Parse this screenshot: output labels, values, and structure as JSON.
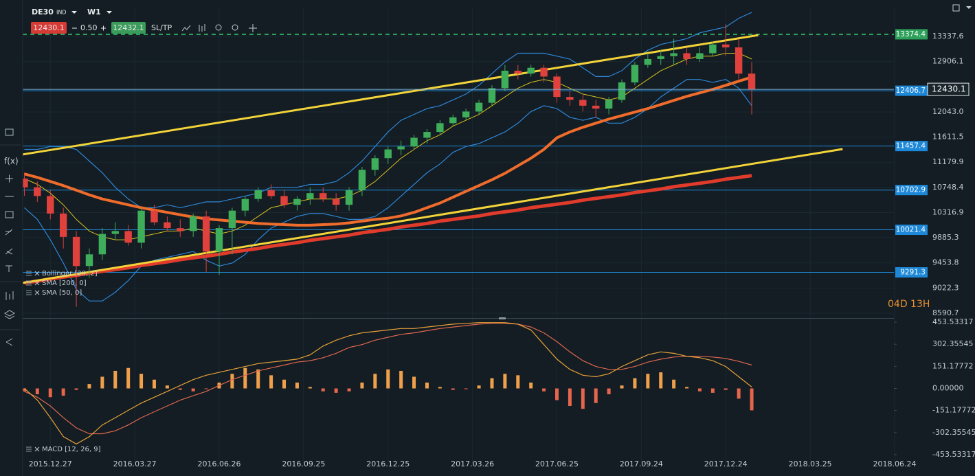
{
  "toolbar": {
    "symbol": "DE30",
    "symbol_type": "IND",
    "timeframe": "W1",
    "bid": "12430.1",
    "spread": "0.50",
    "ask": "12432.1",
    "sltp": "SL/TP"
  },
  "side_toolbar": {
    "fx": "f(x)"
  },
  "countdown": "04D 13H",
  "chart_data": [
    {
      "type": "candlestick",
      "xlim": [
        "2015.11.22",
        "2018.06.24"
      ],
      "ylim": [
        8508,
        13845
      ],
      "yticks": [
        13337.6,
        12906.1,
        {
          "value": 12043.0,
          "label": "12043.0"
        },
        11611.5,
        11179.9,
        10748.4,
        10316.9,
        9885.3,
        9453.8,
        9022.3,
        8590.7
      ],
      "grid": true,
      "up_color": "#3fae5b",
      "down_color": "#e0413d",
      "x": [
        "2015.11.29",
        "2015.12.13",
        "2015.12.27",
        "2016.01.10",
        "2016.01.24",
        "2016.02.07",
        "2016.02.21",
        "2016.03.06",
        "2016.03.20",
        "2016.04.03",
        "2016.04.17",
        "2016.05.01",
        "2016.05.15",
        "2016.05.29",
        "2016.06.12",
        "2016.06.26",
        "2016.07.10",
        "2016.07.24",
        "2016.08.07",
        "2016.08.21",
        "2016.09.04",
        "2016.09.18",
        "2016.10.02",
        "2016.10.16",
        "2016.10.30",
        "2016.11.13",
        "2016.11.27",
        "2016.12.11",
        "2016.12.25",
        "2017.01.08",
        "2017.01.22",
        "2017.02.05",
        "2017.02.19",
        "2017.03.05",
        "2017.03.19",
        "2017.04.02",
        "2017.04.16",
        "2017.04.30",
        "2017.05.14",
        "2017.05.28",
        "2017.06.11",
        "2017.06.25",
        "2017.07.09",
        "2017.07.23",
        "2017.08.06",
        "2017.08.20",
        "2017.09.03",
        "2017.09.17",
        "2017.10.01",
        "2017.10.15",
        "2017.10.29",
        "2017.11.12",
        "2017.11.26",
        "2017.12.10",
        "2017.12.24",
        "2018.01.07",
        "2018.01.21"
      ],
      "open": [
        10900,
        10750,
        10600,
        10300,
        9900,
        9400,
        9600,
        9950,
        10000,
        9800,
        10350,
        10150,
        10050,
        10000,
        10250,
        9650,
        10050,
        10350,
        10550,
        10700,
        10600,
        10450,
        10550,
        10650,
        10550,
        10450,
        10700,
        11050,
        11250,
        11400,
        11450,
        11600,
        11700,
        11850,
        11950,
        12050,
        12200,
        12450,
        12750,
        12700,
        12800,
        12650,
        12300,
        12250,
        12150,
        12100,
        12250,
        12550,
        12850,
        12950,
        13000,
        13050,
        12950,
        13050,
        13200,
        13150,
        12700
      ],
      "high": [
        11000,
        10850,
        10700,
        10400,
        10000,
        9700,
        10050,
        10150,
        10100,
        10400,
        10450,
        10250,
        10200,
        10300,
        10350,
        10100,
        10400,
        10600,
        10750,
        10800,
        10700,
        10600,
        10750,
        10750,
        10650,
        10750,
        11100,
        11300,
        11450,
        11550,
        11650,
        11750,
        11900,
        12000,
        12100,
        12250,
        12500,
        12850,
        12850,
        12850,
        12850,
        12700,
        12400,
        12350,
        12250,
        12300,
        12600,
        12900,
        13050,
        13100,
        13300,
        13150,
        13150,
        13250,
        13550,
        13300,
        12900
      ],
      "low": [
        10600,
        10500,
        10200,
        9700,
        8700,
        9200,
        9500,
        9850,
        9750,
        9700,
        10100,
        10000,
        9900,
        9900,
        9300,
        9250,
        9600,
        10250,
        10500,
        10550,
        10400,
        10350,
        10450,
        10500,
        10350,
        10350,
        10600,
        10950,
        11150,
        11300,
        11400,
        11500,
        11650,
        11800,
        11900,
        12000,
        12150,
        12400,
        12600,
        12650,
        12550,
        12200,
        12150,
        12050,
        11950,
        12000,
        12200,
        12500,
        12800,
        12850,
        12850,
        12850,
        12900,
        13000,
        13000,
        12600,
        12000
      ],
      "close": [
        10750,
        10600,
        10300,
        9900,
        9400,
        9600,
        9950,
        10000,
        9800,
        10350,
        10150,
        10050,
        10000,
        10250,
        9650,
        10050,
        10350,
        10550,
        10700,
        10600,
        10450,
        10550,
        10650,
        10550,
        10450,
        10700,
        11050,
        11250,
        11400,
        11450,
        11600,
        11700,
        11850,
        11950,
        12050,
        12200,
        12450,
        12750,
        12700,
        12800,
        12650,
        12300,
        12250,
        12150,
        12100,
        12250,
        12550,
        12850,
        12950,
        13000,
        13050,
        12950,
        13050,
        13200,
        13150,
        12700,
        12430
      ],
      "series": [
        {
          "name": "Bollinger [20, 2]",
          "color": "#2f86d8",
          "mid_color": "#d8c01f",
          "values": [
            10900,
            10800,
            10650,
            10450,
            10200,
            10000,
            9900,
            9850,
            9850,
            9900,
            9950,
            10000,
            10000,
            10050,
            10000,
            9950,
            10000,
            10100,
            10250,
            10400,
            10450,
            10500,
            10550,
            10550,
            10550,
            10600,
            10700,
            10850,
            11050,
            11250,
            11400,
            11550,
            11650,
            11800,
            11900,
            12000,
            12150,
            12300,
            12450,
            12550,
            12600,
            12550,
            12450,
            12350,
            12300,
            12250,
            12300,
            12450,
            12600,
            12750,
            12850,
            12950,
            13000,
            13000,
            13050,
            13050,
            12950
          ],
          "upper": [
            11400,
            11400,
            11450,
            11450,
            11400,
            11200,
            11000,
            10750,
            10550,
            10400,
            10400,
            10450,
            10400,
            10450,
            10500,
            10500,
            10550,
            10600,
            10650,
            10750,
            10750,
            10750,
            10800,
            10800,
            10850,
            11000,
            11200,
            11450,
            11700,
            11900,
            12000,
            12100,
            12150,
            12250,
            12350,
            12500,
            12700,
            12900,
            13050,
            13050,
            13050,
            13000,
            12950,
            12800,
            12650,
            12650,
            12750,
            12950,
            13100,
            13200,
            13250,
            13300,
            13400,
            13450,
            13500,
            13650,
            13750
          ],
          "lower": [
            10400,
            10200,
            9850,
            9450,
            9000,
            8800,
            8800,
            8950,
            9150,
            9400,
            9500,
            9550,
            9600,
            9650,
            9500,
            9400,
            9450,
            9600,
            9850,
            10050,
            10150,
            10250,
            10300,
            10300,
            10250,
            10200,
            10200,
            10250,
            10400,
            10600,
            10800,
            11000,
            11150,
            11350,
            11450,
            11500,
            11600,
            11700,
            11850,
            12050,
            12150,
            12100,
            11950,
            11900,
            11950,
            11850,
            11850,
            11950,
            12100,
            12300,
            12450,
            12600,
            12600,
            12550,
            12600,
            12450,
            12150
          ]
        },
        {
          "name": "SMA [200, 0]",
          "color": "#e03b2b",
          "values": [
            9110,
            9140,
            9180,
            9210,
            9240,
            9280,
            9310,
            9340,
            9370,
            9410,
            9440,
            9470,
            9510,
            9540,
            9570,
            9600,
            9640,
            9670,
            9700,
            9740,
            9770,
            9800,
            9840,
            9870,
            9900,
            9930,
            9970,
            10000,
            10030,
            10070,
            10100,
            10130,
            10170,
            10200,
            10230,
            10260,
            10300,
            10330,
            10360,
            10400,
            10430,
            10460,
            10490,
            10530,
            10560,
            10590,
            10620,
            10660,
            10690,
            10720,
            10760,
            10790,
            10820,
            10850,
            10890,
            10920,
            10950
          ]
        },
        {
          "name": "SMA [50, 0]",
          "color": "#ef6c2c",
          "values": [
            10980,
            10920,
            10850,
            10780,
            10700,
            10620,
            10550,
            10500,
            10450,
            10400,
            10360,
            10320,
            10280,
            10240,
            10210,
            10190,
            10170,
            10150,
            10130,
            10120,
            10110,
            10100,
            10100,
            10110,
            10120,
            10140,
            10170,
            10200,
            10220,
            10260,
            10320,
            10400,
            10480,
            10580,
            10680,
            10780,
            10880,
            10990,
            11120,
            11250,
            11400,
            11600,
            11700,
            11780,
            11850,
            11920,
            11980,
            12040,
            12100,
            12170,
            12240,
            12310,
            12370,
            12430,
            12500,
            12570,
            12640
          ]
        }
      ],
      "trendlines": [
        {
          "color": "#f3d33a",
          "x": [
            "2015.11.22",
            "2018.01.28"
          ],
          "y": [
            11300,
            13360
          ]
        },
        {
          "color": "#f3d33a",
          "x": [
            "2015.11.22",
            "2018.04.29"
          ],
          "y": [
            9097,
            11406
          ]
        }
      ],
      "target": {
        "value": 13374.4,
        "color": "#2da05a"
      },
      "levels": [
        {
          "value": 12406.7,
          "color": "#1e88d8"
        },
        {
          "value": 11457.4,
          "color": "#1e88d8"
        },
        {
          "value": 10702.9,
          "color": "#1e88d8"
        },
        {
          "value": 10021.4,
          "color": "#1e88d8"
        },
        {
          "value": 9291.3,
          "color": "#1e88d8"
        }
      ],
      "current_price": 12430.1
    },
    {
      "type": "macd",
      "name": "MACD [12, 26, 9]",
      "xlim": [
        "2015.11.22",
        "2018.06.24"
      ],
      "xticks": [
        "2015.12.27",
        "2016.03.27",
        "2016.06.26",
        "2016.09.25",
        "2016.12.25",
        "2017.03.26",
        "2017.06.25",
        "2017.09.24",
        "2017.12.24",
        "2018.03.25",
        "2018.06.24"
      ],
      "ylim": [
        -514.6,
        472.3
      ],
      "yticks": [
        453.53317,
        302.35545,
        151.17772,
        {
          "value": 0,
          "label": "0.00000"
        },
        -151.17772,
        -302.35545,
        -453.53317
      ],
      "positive_color": "#f0a04b",
      "negative_color": "#e5654d",
      "macd_color": "#e8a13a",
      "signal_color": "#e0674f",
      "x": [
        "2015.11.29",
        "2015.12.13",
        "2015.12.27",
        "2016.01.10",
        "2016.01.24",
        "2016.02.07",
        "2016.02.21",
        "2016.03.06",
        "2016.03.20",
        "2016.04.03",
        "2016.04.17",
        "2016.05.01",
        "2016.05.15",
        "2016.05.29",
        "2016.06.12",
        "2016.06.26",
        "2016.07.10",
        "2016.07.24",
        "2016.08.07",
        "2016.08.21",
        "2016.09.04",
        "2016.09.18",
        "2016.10.02",
        "2016.10.16",
        "2016.10.30",
        "2016.11.13",
        "2016.11.27",
        "2016.12.11",
        "2016.12.25",
        "2017.01.08",
        "2017.01.22",
        "2017.02.05",
        "2017.02.19",
        "2017.03.05",
        "2017.03.19",
        "2017.04.02",
        "2017.04.16",
        "2017.04.30",
        "2017.05.14",
        "2017.05.28",
        "2017.06.11",
        "2017.06.25",
        "2017.07.09",
        "2017.07.23",
        "2017.08.06",
        "2017.08.20",
        "2017.09.03",
        "2017.09.17",
        "2017.10.01",
        "2017.10.15",
        "2017.10.29",
        "2017.11.12",
        "2017.11.26",
        "2017.12.10",
        "2017.12.24",
        "2018.01.07",
        "2018.01.21"
      ],
      "histogram": [
        -20,
        -40,
        -60,
        -50,
        -10,
        30,
        80,
        120,
        140,
        100,
        60,
        20,
        -10,
        -20,
        -5,
        40,
        100,
        140,
        130,
        90,
        60,
        40,
        10,
        -20,
        -30,
        -20,
        40,
        100,
        130,
        120,
        80,
        40,
        10,
        -10,
        -5,
        20,
        70,
        100,
        90,
        40,
        -20,
        -80,
        -120,
        -140,
        -100,
        -40,
        20,
        70,
        100,
        110,
        60,
        10,
        -20,
        -30,
        -10,
        -70,
        -150
      ],
      "macd": [
        0,
        -80,
        -200,
        -330,
        -380,
        -330,
        -250,
        -200,
        -150,
        -100,
        -60,
        -20,
        20,
        60,
        90,
        110,
        130,
        150,
        170,
        180,
        190,
        200,
        230,
        290,
        330,
        360,
        380,
        390,
        400,
        410,
        410,
        420,
        430,
        440,
        445,
        450,
        450,
        450,
        440,
        400,
        300,
        200,
        130,
        90,
        80,
        100,
        150,
        190,
        230,
        250,
        240,
        220,
        210,
        190,
        150,
        80,
        10
      ],
      "signal": [
        -20,
        -60,
        -120,
        -200,
        -270,
        -310,
        -310,
        -290,
        -250,
        -200,
        -160,
        -120,
        -80,
        -50,
        -20,
        20,
        60,
        90,
        120,
        140,
        160,
        180,
        190,
        210,
        240,
        280,
        300,
        330,
        350,
        370,
        380,
        395,
        410,
        420,
        430,
        440,
        445,
        445,
        440,
        420,
        380,
        320,
        250,
        190,
        150,
        130,
        130,
        150,
        180,
        200,
        215,
        220,
        220,
        215,
        205,
        185,
        160
      ]
    }
  ]
}
